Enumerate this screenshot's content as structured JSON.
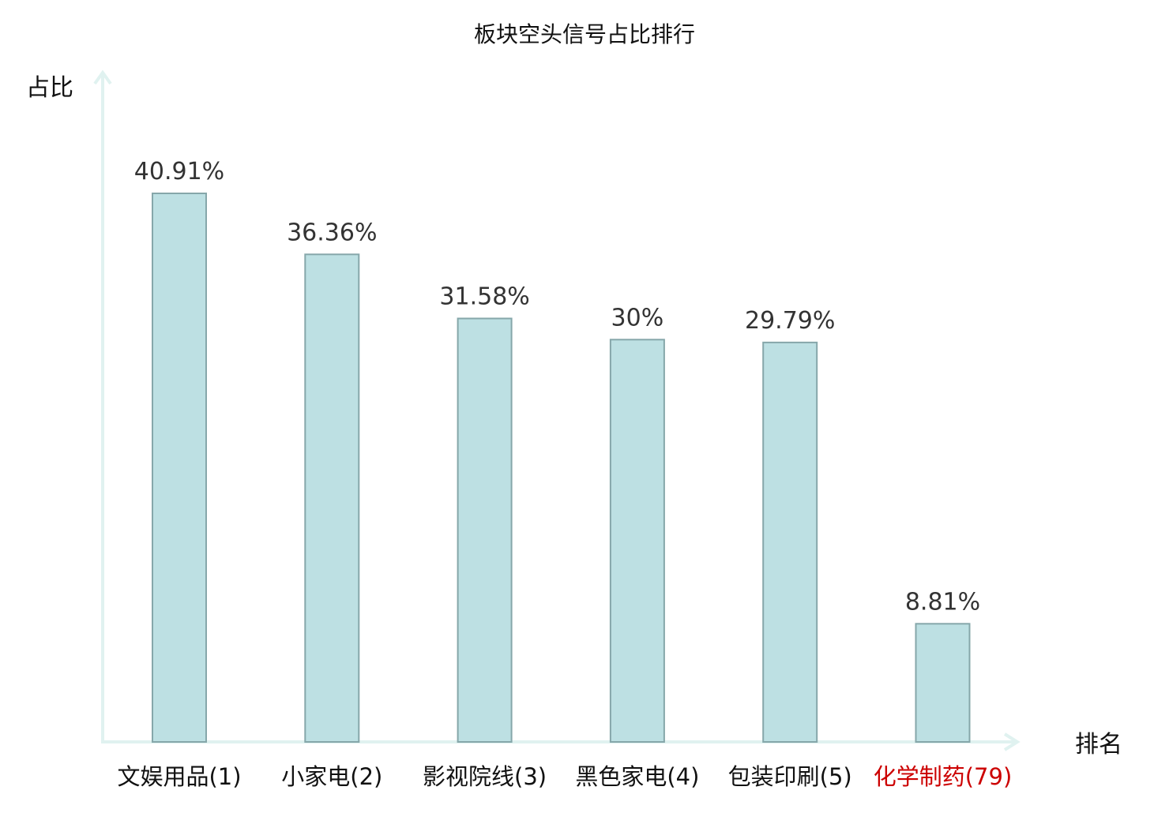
{
  "chart_data": {
    "type": "bar",
    "title": "板块空头信号占比排行",
    "ylabel": "占比",
    "xlabel": "排名",
    "categories": [
      {
        "name": "文娱用品",
        "rank": "(1)",
        "highlight": false
      },
      {
        "name": "小家电",
        "rank": "(2)",
        "highlight": false
      },
      {
        "name": "影视院线",
        "rank": "(3)",
        "highlight": false
      },
      {
        "name": "黑色家电",
        "rank": "(4)",
        "highlight": false
      },
      {
        "name": "包装印刷",
        "rank": "(5)",
        "highlight": false
      },
      {
        "name": "化学制药",
        "rank": "(79)",
        "highlight": true
      }
    ],
    "values": [
      40.91,
      36.36,
      31.58,
      30,
      29.79,
      8.81
    ],
    "value_labels": [
      "40.91%",
      "36.36%",
      "31.58%",
      "30%",
      "29.79%",
      "8.81%"
    ],
    "ylim": [
      0,
      50
    ],
    "grid": false,
    "colors": {
      "bar_fill": "#bde0e3",
      "bar_stroke": "#86a7aa",
      "axis": "#e0f2f0",
      "text": "#333333",
      "label_text": "#111111",
      "highlight_text": "#cc0000"
    }
  }
}
